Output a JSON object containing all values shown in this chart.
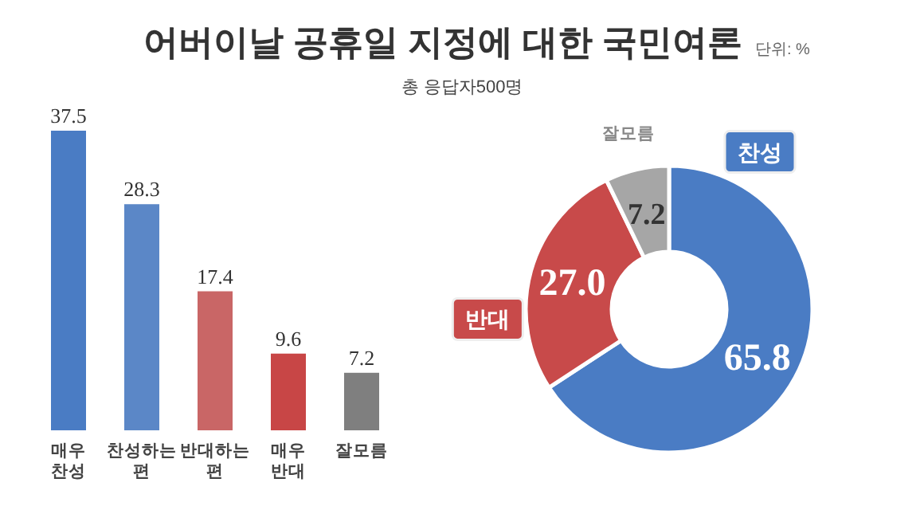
{
  "chart_data": [
    {
      "type": "bar",
      "title": "어버이날 공휴일 지정에 대한 국민여론",
      "subtitle": "총 응답자500명",
      "annotations": [
        "단위: %"
      ],
      "categories": [
        "매우 찬성",
        "찬성하는 편",
        "반대하는 편",
        "매우 반대",
        "잘모름"
      ],
      "values": [
        37.5,
        28.3,
        17.4,
        9.6,
        7.2
      ],
      "colors": [
        "#4a7cc4",
        "#5b87c7",
        "#c96666",
        "#c84646",
        "#7f7f7f"
      ],
      "data_labels": true
    },
    {
      "type": "donut",
      "categories": [
        "찬성",
        "반대",
        "잘모름"
      ],
      "values": [
        65.8,
        27.0,
        7.2
      ],
      "value_labels": [
        "65.8",
        "27.0",
        "7.2"
      ],
      "colors": [
        "#4a7cc4",
        "#c84a4a",
        "#a6a6a6"
      ]
    }
  ]
}
